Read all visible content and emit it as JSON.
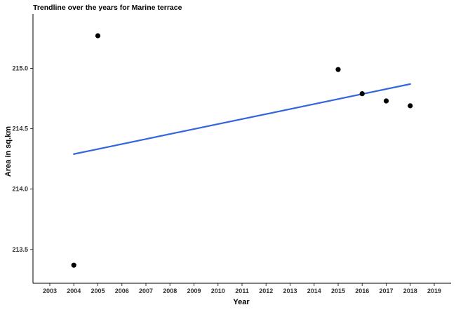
{
  "chart_data": {
    "type": "scatter",
    "title": "Trendline over the years for Marine terrace",
    "xlabel": "Year",
    "ylabel": "Area in sq.km",
    "xlim": [
      2002.3,
      2019.7
    ],
    "ylim": [
      213.22,
      215.45
    ],
    "x_ticks": [
      2003,
      2004,
      2005,
      2006,
      2007,
      2008,
      2009,
      2010,
      2011,
      2012,
      2013,
      2014,
      2015,
      2016,
      2017,
      2018,
      2019
    ],
    "x_tick_labels": [
      "2003",
      "2004",
      "2005",
      "2006",
      "2007",
      "2008",
      "2009",
      "2010",
      "2011",
      "2012",
      "2013",
      "2014",
      "2015",
      "2016",
      "2017",
      "2018",
      "2019"
    ],
    "y_ticks": [
      213.5,
      214.0,
      214.5,
      215.0
    ],
    "y_tick_labels": [
      "213.5",
      "214.0",
      "214.5",
      "215.0"
    ],
    "points": [
      {
        "x": 2004,
        "y": 213.37
      },
      {
        "x": 2005,
        "y": 215.27
      },
      {
        "x": 2015,
        "y": 214.99
      },
      {
        "x": 2016,
        "y": 214.79
      },
      {
        "x": 2017,
        "y": 214.73
      },
      {
        "x": 2018,
        "y": 214.69
      }
    ],
    "trendline": {
      "x": [
        2004,
        2018
      ],
      "y": [
        214.29,
        214.87
      ]
    },
    "grid": false,
    "colors": {
      "points": "#000000",
      "trendline": "#3366dd",
      "axis": "#000000"
    }
  }
}
